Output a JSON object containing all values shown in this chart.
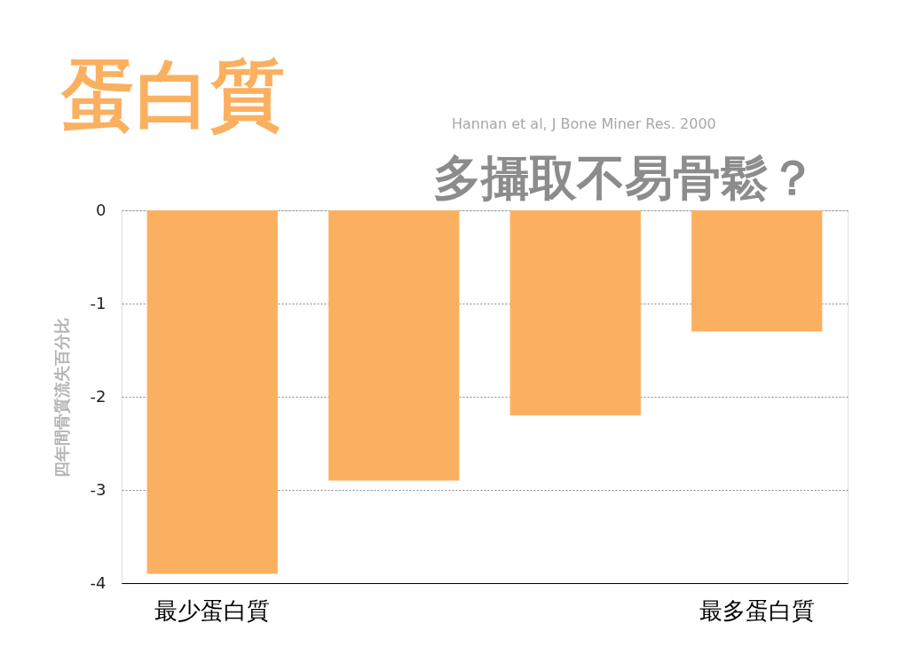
{
  "chart_data": {
    "type": "bar",
    "title": "蛋白質",
    "subtitle": "多攝取不易骨鬆？",
    "annotations": [
      "Hannan et al, J Bone Miner Res. 2000"
    ],
    "ylabel": "四年間骨質流失百分比",
    "categories": [
      "最少蛋白質",
      null,
      null,
      "最多蛋白質"
    ],
    "values": [
      -3.9,
      -2.9,
      -2.2,
      -1.3
    ],
    "color": "#fbb060",
    "ylim": [
      -4,
      0
    ],
    "yticks": [
      0,
      -1,
      -2,
      -3,
      -4
    ],
    "grid": "y"
  }
}
